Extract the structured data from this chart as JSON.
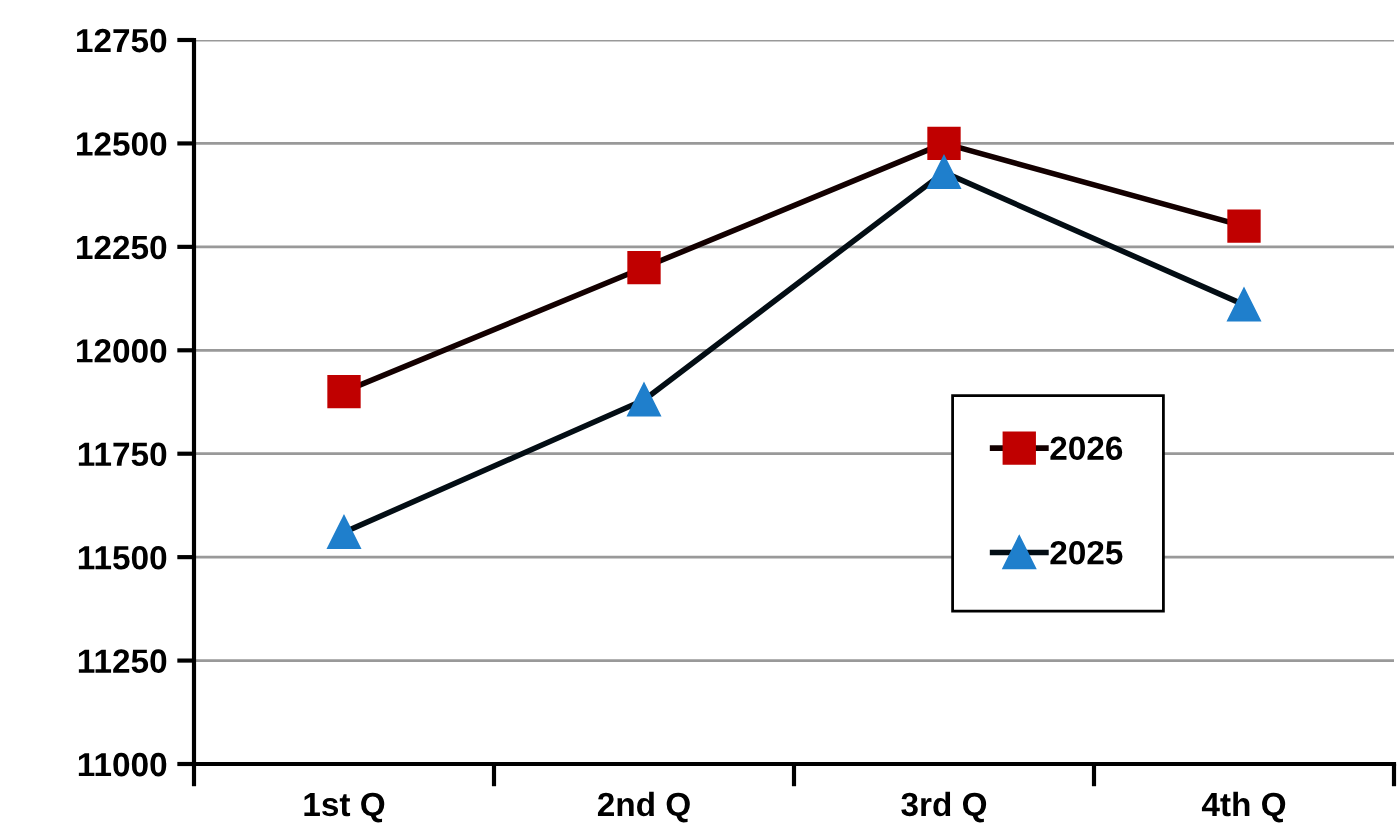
{
  "chart_data": {
    "type": "line",
    "categories": [
      "1st Q",
      "2nd Q",
      "3rd Q",
      "4th Q"
    ],
    "series": [
      {
        "name": "2026",
        "color": "#c00000",
        "marker": "square",
        "values": [
          11900,
          12200,
          12500,
          12300
        ]
      },
      {
        "name": "2025",
        "color": "#1f7fcc",
        "marker": "triangle",
        "values": [
          11560,
          11880,
          12430,
          12110
        ]
      }
    ],
    "ylim": [
      11000,
      12750
    ],
    "yticks": [
      11000,
      11250,
      11500,
      11750,
      12000,
      12250,
      12500,
      12750
    ],
    "grid": "y",
    "legend": "center right",
    "line_style": "solid"
  }
}
